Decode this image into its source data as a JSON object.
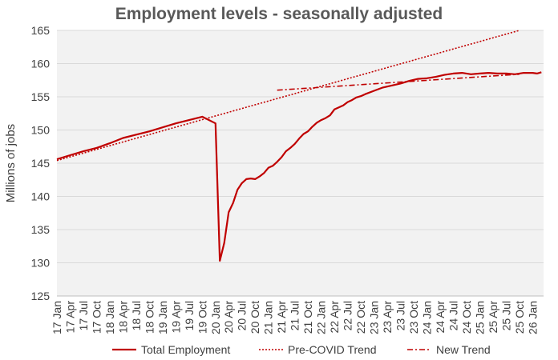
{
  "chart_data": {
    "type": "line",
    "title": "Employment levels - seasonally adjusted",
    "xlabel": "",
    "ylabel": "Millions of jobs",
    "ylim": [
      125,
      165
    ],
    "yticks": [
      125,
      130,
      135,
      140,
      145,
      150,
      155,
      160,
      165
    ],
    "grid": true,
    "legend_position": "bottom",
    "x_tick_labels": [
      "17 Jan",
      "17 Apr",
      "17 Jul",
      "17 Oct",
      "18 Jan",
      "18 Apr",
      "18 Jul",
      "18 Oct",
      "19 Jan",
      "19 Apr",
      "19 Jul",
      "19 Oct",
      "20 Jan",
      "20 Apr",
      "20 Jul",
      "20 Oct",
      "21 Jan",
      "21 Apr",
      "21 Jul",
      "21 Oct",
      "22 Jan",
      "22 Apr",
      "22 Jul",
      "22 Oct",
      "23 Jan",
      "23 Apr",
      "23 Jul",
      "23 Oct",
      "24 Jan",
      "24 Apr",
      "24 Jul",
      "24 Oct",
      "25 Jan",
      "25 Apr",
      "25 Jul",
      "25 Oct",
      "26 Jan"
    ],
    "x_unit": "months since Jan 2017",
    "series": [
      {
        "name": "Total Employment",
        "color": "#c00000",
        "style": "solid",
        "x": [
          0,
          3,
          6,
          9,
          12,
          15,
          18,
          21,
          24,
          27,
          30,
          33,
          36,
          37,
          38,
          39,
          40,
          41,
          42,
          43,
          44,
          45,
          46,
          47,
          48,
          49,
          50,
          51,
          52,
          53,
          54,
          55,
          56,
          57,
          58,
          59,
          60,
          61,
          62,
          63,
          64,
          65,
          66,
          67,
          68,
          69,
          70,
          72,
          74,
          76,
          78,
          80,
          82,
          84,
          86,
          88,
          90,
          92,
          94,
          96,
          98,
          100,
          102,
          104,
          106,
          108,
          109,
          110
        ],
        "values": [
          145.6,
          146.2,
          146.8,
          147.3,
          148.0,
          148.8,
          149.3,
          149.8,
          150.4,
          151.0,
          151.5,
          152.0,
          151.0,
          130.3,
          133.0,
          137.6,
          139.0,
          141.0,
          142.0,
          142.6,
          142.7,
          142.6,
          143.0,
          143.5,
          144.3,
          144.6,
          145.2,
          145.9,
          146.8,
          147.3,
          147.9,
          148.7,
          149.4,
          149.8,
          150.5,
          151.1,
          151.5,
          151.8,
          152.2,
          153.1,
          153.4,
          153.7,
          154.2,
          154.5,
          154.9,
          155.1,
          155.4,
          155.9,
          156.4,
          156.7,
          157.0,
          157.4,
          157.7,
          157.8,
          158.0,
          158.3,
          158.5,
          158.6,
          158.4,
          158.5,
          158.6,
          158.5,
          158.5,
          158.4,
          158.6,
          158.6,
          158.5,
          158.7
        ]
      },
      {
        "name": "Pre-COVID Trend",
        "color": "#c00000",
        "style": "dotted",
        "x": [
          0,
          105
        ],
        "values": [
          145.4,
          165.0
        ]
      },
      {
        "name": "New Trend",
        "color": "#c00000",
        "style": "dashdot",
        "x": [
          50,
          105
        ],
        "values": [
          156.0,
          158.4
        ]
      }
    ]
  }
}
